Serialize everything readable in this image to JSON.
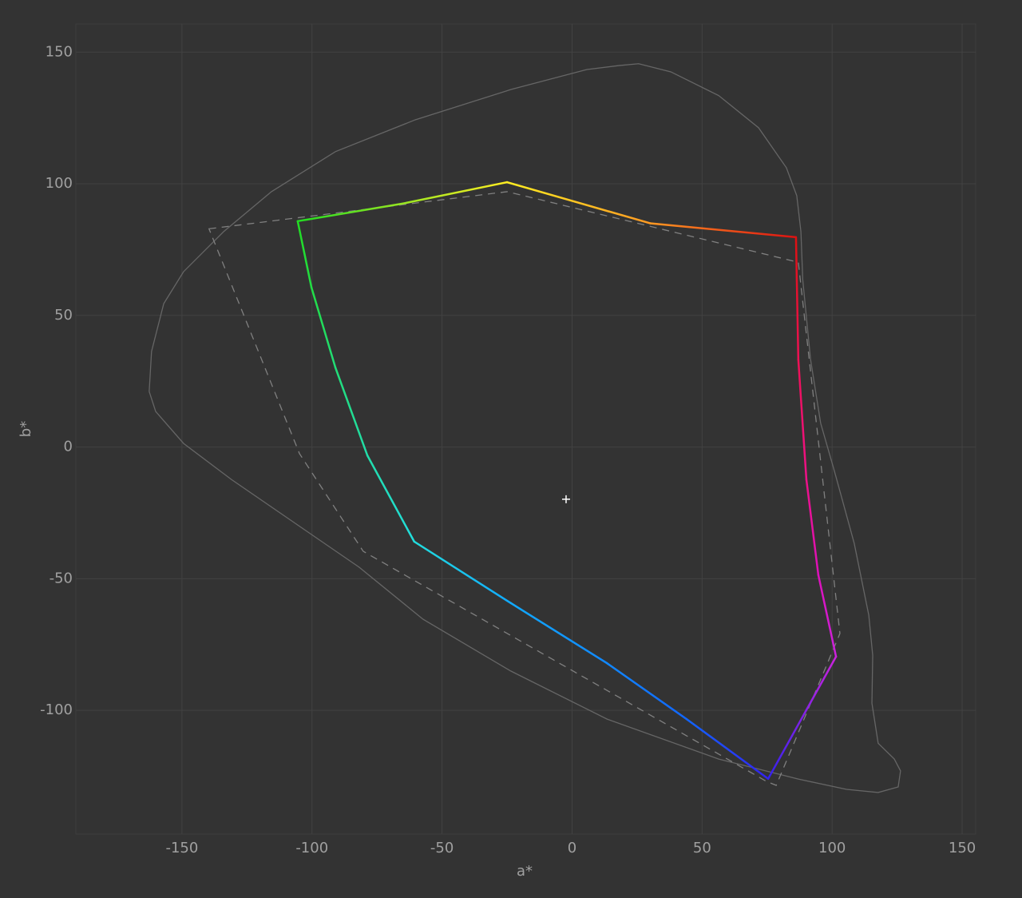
{
  "chart_data": {
    "type": "line",
    "xlabel": "a*",
    "ylabel": "b*",
    "xlim": [
      -190.8,
      155.2
    ],
    "ylim": [
      -147.0,
      160.7
    ],
    "xticks": [
      -150,
      -100,
      -50,
      0,
      50,
      100,
      150
    ],
    "yticks": [
      -100,
      -50,
      0,
      50,
      100,
      150
    ],
    "grid": true,
    "series": [
      {
        "color": "#666666",
        "dash": "solid",
        "closed": true,
        "x": [
          18.0,
          5.7,
          -23.5,
          -60.3,
          -91.0,
          -115.6,
          -134.0,
          -149.4,
          -157.0,
          -161.7,
          -162.6,
          -160.1,
          -149.4,
          -131.0,
          -106.4,
          -81.9,
          -57.3,
          -23.5,
          13.4,
          56.4,
          87.0,
          105.5,
          117.7,
          125.4,
          126.3,
          123.9,
          117.7,
          115.3,
          115.6,
          114.1,
          108.5,
          100.9,
          95.6,
          91.7,
          88.7,
          88.0,
          86.4,
          82.4,
          71.7,
          56.4,
          38.0,
          25.6
        ],
        "values": [
          144.9,
          143.4,
          135.8,
          124.3,
          112.2,
          97.0,
          81.8,
          66.6,
          54.5,
          36.3,
          21.1,
          13.5,
          1.4,
          -12.3,
          -29.0,
          -45.6,
          -65.4,
          -85.1,
          -103.3,
          -118.5,
          -126.1,
          -130.0,
          -131.2,
          -129.1,
          -123.0,
          -118.5,
          -112.5,
          -97.3,
          -79.1,
          -63.9,
          -36.6,
          -9.2,
          9.0,
          33.3,
          63.6,
          81.8,
          95.5,
          106.1,
          121.3,
          133.5,
          142.5,
          145.6
        ]
      },
      {
        "color": "#808080",
        "dash": "dashed",
        "closed": true,
        "x": [
          -139.6,
          -25.0,
          87.0,
          103.0,
          78.5,
          74.8,
          -80.3,
          -104.8
        ],
        "values": [
          82.9,
          97.0,
          70.2,
          -70.8,
          -128.5,
          -127.0,
          -39.6,
          -2.5
        ]
      },
      {
        "dash": "solid",
        "closed": true,
        "x": [
          -105.5,
          -65.0,
          -25.0,
          30.0,
          86.1,
          87.0,
          90.1,
          94.7,
          101.5,
          75.4,
          44.0,
          13.3,
          -23.5,
          -60.7,
          -78.7,
          -91.0,
          -100.2
        ],
        "values": [
          85.8,
          92.5,
          100.6,
          85.0,
          79.7,
          33.2,
          -12.3,
          -48.6,
          -79.6,
          -126.0,
          -103.3,
          -82.0,
          -59.3,
          -35.9,
          -3.2,
          30.2,
          60.6
        ],
        "colors": [
          "#22dd22",
          "#99e622",
          "#ffee22",
          "#ff9922",
          "#dd1111",
          "#ee1155",
          "#ee1188",
          "#dd11bb",
          "#cc22dd",
          "#3322ee",
          "#1166ff",
          "#1188ff",
          "#11aaff",
          "#22dddd",
          "#22ddaa",
          "#22dd77",
          "#22dd44"
        ]
      }
    ],
    "white_point": {
      "x": -2.3,
      "y": -19.8,
      "color": "#ffffff"
    }
  }
}
